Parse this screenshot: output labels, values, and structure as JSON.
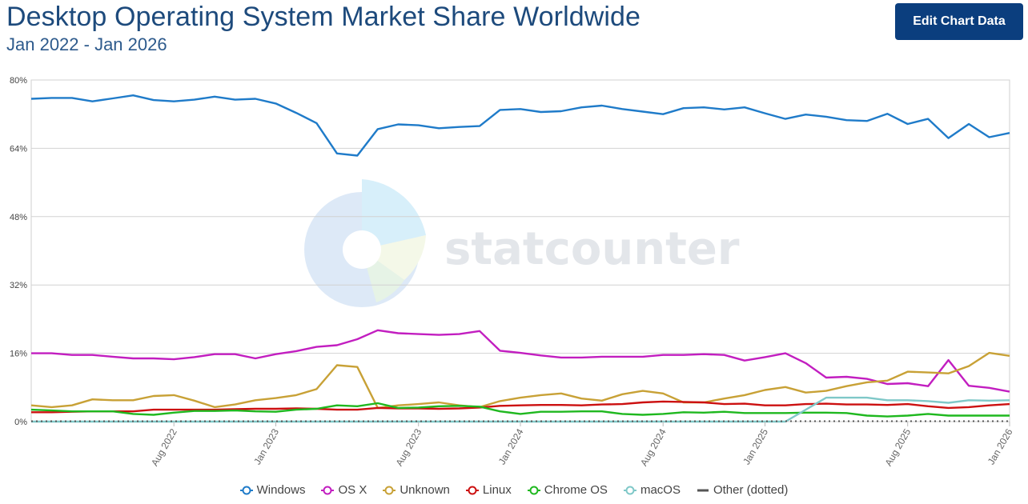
{
  "header": {
    "title": "Desktop Operating System Market Share Worldwide",
    "subtitle": "Jan 2022 - Jan 2026",
    "edit_button_label": "Edit Chart Data"
  },
  "watermark": {
    "text": "statcounter"
  },
  "chart_data": {
    "type": "line",
    "title": "Desktop Operating System Market Share Worldwide",
    "subtitle": "Jan 2022 - Jan 2026",
    "ylim": [
      0,
      80
    ],
    "yticks": [
      "0%",
      "16%",
      "32%",
      "48%",
      "64%",
      "80%"
    ],
    "xticks": [
      {
        "label": "Aug 2022",
        "index": 7
      },
      {
        "label": "Jan 2023",
        "index": 12
      },
      {
        "label": "Aug 2023",
        "index": 19
      },
      {
        "label": "Jan 2024",
        "index": 24
      },
      {
        "label": "Aug 2024",
        "index": 31
      },
      {
        "label": "Jan 2025",
        "index": 36
      },
      {
        "label": "Aug 2025",
        "index": 43
      },
      {
        "label": "Jan 2026",
        "index": 48
      }
    ],
    "grid": true,
    "legend_position": "bottom",
    "series": [
      {
        "name": "Windows",
        "color": "#1f7bc9",
        "dotted": false,
        "values": [
          75.6,
          75.8,
          75.8,
          75.0,
          75.7,
          76.4,
          75.3,
          75.0,
          75.4,
          76.1,
          75.4,
          75.6,
          74.5,
          72.3,
          69.9,
          62.8,
          62.3,
          68.5,
          69.6,
          69.4,
          68.7,
          69.0,
          69.2,
          73.0,
          73.2,
          72.5,
          72.7,
          73.6,
          74.0,
          73.2,
          72.6,
          72.0,
          73.4,
          73.6,
          73.1,
          73.6,
          72.2,
          70.9,
          71.9,
          71.4,
          70.6,
          70.4,
          72.1,
          69.7,
          70.9,
          66.4,
          69.7,
          66.6,
          67.6
        ]
      },
      {
        "name": "OS X",
        "color": "#c21ec0",
        "dotted": false,
        "values": [
          16.0,
          16.0,
          15.6,
          15.6,
          15.2,
          14.8,
          14.8,
          14.6,
          15.1,
          15.8,
          15.8,
          14.8,
          15.8,
          16.5,
          17.5,
          17.9,
          19.3,
          21.4,
          20.7,
          20.5,
          20.3,
          20.5,
          21.2,
          16.6,
          16.1,
          15.5,
          15.0,
          15.0,
          15.2,
          15.2,
          15.2,
          15.6,
          15.6,
          15.8,
          15.6,
          14.3,
          15.1,
          16.0,
          13.7,
          10.3,
          10.5,
          10.0,
          8.8,
          9.0,
          8.3,
          14.4,
          8.4,
          7.9,
          7.0
        ]
      },
      {
        "name": "Unknown",
        "color": "#c8a136",
        "dotted": false,
        "values": [
          3.8,
          3.4,
          3.8,
          5.2,
          5.0,
          5.0,
          6.0,
          6.2,
          4.9,
          3.4,
          4.0,
          5.0,
          5.5,
          6.2,
          7.6,
          13.2,
          12.8,
          3.2,
          3.8,
          4.1,
          4.5,
          3.8,
          3.4,
          4.8,
          5.6,
          6.2,
          6.6,
          5.4,
          4.9,
          6.4,
          7.2,
          6.6,
          4.5,
          4.5,
          5.4,
          6.2,
          7.4,
          8.1,
          6.8,
          7.2,
          8.3,
          9.2,
          9.6,
          11.7,
          11.5,
          11.3,
          13.0,
          16.1,
          15.4
        ]
      },
      {
        "name": "Linux",
        "color": "#cc1010",
        "dotted": false,
        "values": [
          2.2,
          2.2,
          2.3,
          2.4,
          2.4,
          2.4,
          2.8,
          2.8,
          2.8,
          2.8,
          2.9,
          3.0,
          3.0,
          3.1,
          3.0,
          2.8,
          2.8,
          3.2,
          3.1,
          3.1,
          3.0,
          3.1,
          3.3,
          3.7,
          3.8,
          3.9,
          3.9,
          3.8,
          4.0,
          4.1,
          4.5,
          4.7,
          4.6,
          4.5,
          4.1,
          4.2,
          3.8,
          3.8,
          4.1,
          4.2,
          4.0,
          4.0,
          3.9,
          4.1,
          3.6,
          3.2,
          3.4,
          3.8,
          4.1
        ]
      },
      {
        "name": "Chrome OS",
        "color": "#1fb81f",
        "dotted": false,
        "values": [
          2.8,
          2.6,
          2.4,
          2.4,
          2.4,
          1.8,
          1.6,
          2.1,
          2.5,
          2.5,
          2.6,
          2.4,
          2.3,
          2.8,
          3.0,
          3.8,
          3.6,
          4.3,
          3.2,
          3.3,
          3.6,
          3.7,
          3.5,
          2.4,
          1.8,
          2.3,
          2.3,
          2.4,
          2.4,
          1.8,
          1.6,
          1.8,
          2.2,
          2.1,
          2.3,
          2.0,
          2.0,
          2.0,
          2.1,
          2.1,
          2.0,
          1.4,
          1.2,
          1.4,
          1.8,
          1.4,
          1.4,
          1.4,
          1.4
        ]
      },
      {
        "name": "macOS",
        "color": "#7fc8c8",
        "dotted": false,
        "values": [
          0,
          0,
          0,
          0,
          0,
          0,
          0,
          0,
          0,
          0,
          0,
          0,
          0,
          0,
          0,
          0,
          0,
          0,
          0,
          0,
          0,
          0,
          0,
          0,
          0,
          0,
          0,
          0,
          0,
          0,
          0,
          0,
          0,
          0,
          0,
          0,
          0,
          0,
          2.8,
          5.6,
          5.6,
          5.6,
          5.0,
          5.0,
          4.8,
          4.4,
          5.0,
          4.9,
          5.0
        ]
      },
      {
        "name": "Other (dotted)",
        "color": "#555555",
        "dotted": true,
        "values": [
          0.1,
          0.1,
          0.1,
          0.1,
          0.1,
          0.1,
          0.1,
          0.1,
          0.1,
          0.1,
          0.1,
          0.1,
          0.1,
          0.1,
          0.1,
          0.1,
          0.1,
          0.1,
          0.1,
          0.1,
          0.1,
          0.1,
          0.1,
          0.1,
          0.1,
          0.1,
          0.1,
          0.1,
          0.1,
          0.1,
          0.1,
          0.1,
          0.1,
          0.1,
          0.1,
          0.1,
          0.1,
          0.1,
          0.1,
          0.1,
          0.1,
          0.1,
          0.1,
          0.1,
          0.1,
          0.1,
          0.1,
          0.1,
          0.1
        ]
      }
    ]
  }
}
